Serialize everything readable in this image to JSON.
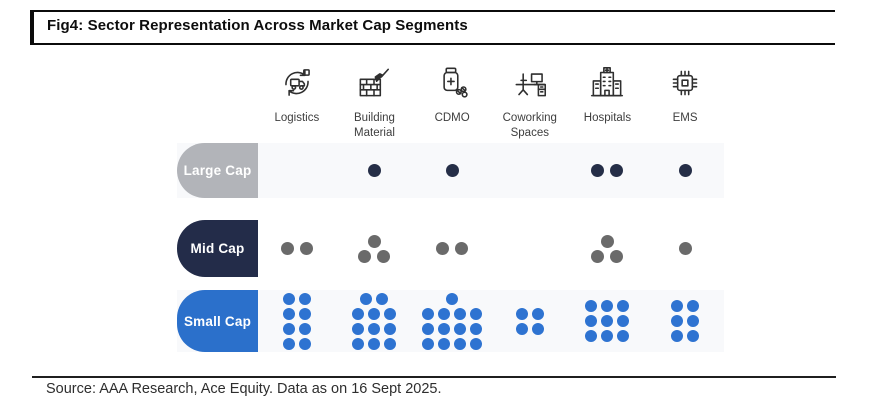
{
  "header": {
    "title": "Fig4: Sector Representation Across Market Cap Segments"
  },
  "footer": {
    "source": "Source: AAA Research, Ace Equity. Data as on 16 Sept 2025."
  },
  "colors": {
    "rule": "#0b0b0b",
    "row_band_bg": "#f8f9fb",
    "pill_gray": "#b2b4b9",
    "pill_navy": "#232c49",
    "pill_blue": "#2b70cb",
    "dot_navy": "#252e47",
    "dot_gray": "#6a6a6a",
    "dot_blue": "#2e73d1",
    "icon_stroke": "#2f2f2f",
    "label_text": "#3e3e3e"
  },
  "chart_data": {
    "type": "pictogram",
    "title": "Sector Representation Across Market Cap Segments",
    "legend_position": "none",
    "grid": false,
    "columns": [
      {
        "label": "Logistics",
        "icon": "logistics-icon"
      },
      {
        "label": "Building Material",
        "icon": "building-material-icon"
      },
      {
        "label": "CDMO",
        "icon": "cdmo-icon"
      },
      {
        "label": "Coworking Spaces",
        "icon": "coworking-spaces-icon"
      },
      {
        "label": "Hospitals",
        "icon": "hospitals-icon"
      },
      {
        "label": "EMS",
        "icon": "ems-icon"
      }
    ],
    "rows": [
      {
        "label": "Large Cap",
        "pill_color": "#b2b4b9",
        "dot_color": "#252e47",
        "row_bg": "#f8f9fb",
        "dot_size": 13,
        "dot_gap": 6,
        "line_gap": 2,
        "counts": [
          0,
          1,
          1,
          0,
          2,
          1
        ],
        "dot_rows": [
          [],
          [
            1
          ],
          [
            1
          ],
          [],
          [
            2
          ],
          [
            1
          ]
        ]
      },
      {
        "label": "Mid Cap",
        "pill_color": "#232c49",
        "dot_color": "#6a6a6a",
        "row_bg": "#ffffff",
        "dot_size": 13,
        "dot_gap": 6,
        "line_gap": 2,
        "counts": [
          2,
          3,
          2,
          0,
          3,
          1
        ],
        "dot_rows": [
          [
            2
          ],
          [
            1,
            2
          ],
          [
            2
          ],
          [],
          [
            1,
            2
          ],
          [
            1
          ]
        ]
      },
      {
        "label": "Small Cap",
        "pill_color": "#2b70cb",
        "dot_color": "#2e73d1",
        "row_bg": "#f8f9fb",
        "dot_size": 12,
        "dot_gap": 4,
        "line_gap": 3,
        "counts": [
          8,
          11,
          13,
          4,
          9,
          6
        ],
        "dot_rows": [
          [
            2,
            2,
            2,
            2
          ],
          [
            2,
            3,
            3,
            3
          ],
          [
            1,
            4,
            4,
            4
          ],
          [
            2,
            2
          ],
          [
            3,
            3,
            3
          ],
          [
            2,
            2,
            2
          ]
        ]
      }
    ]
  }
}
